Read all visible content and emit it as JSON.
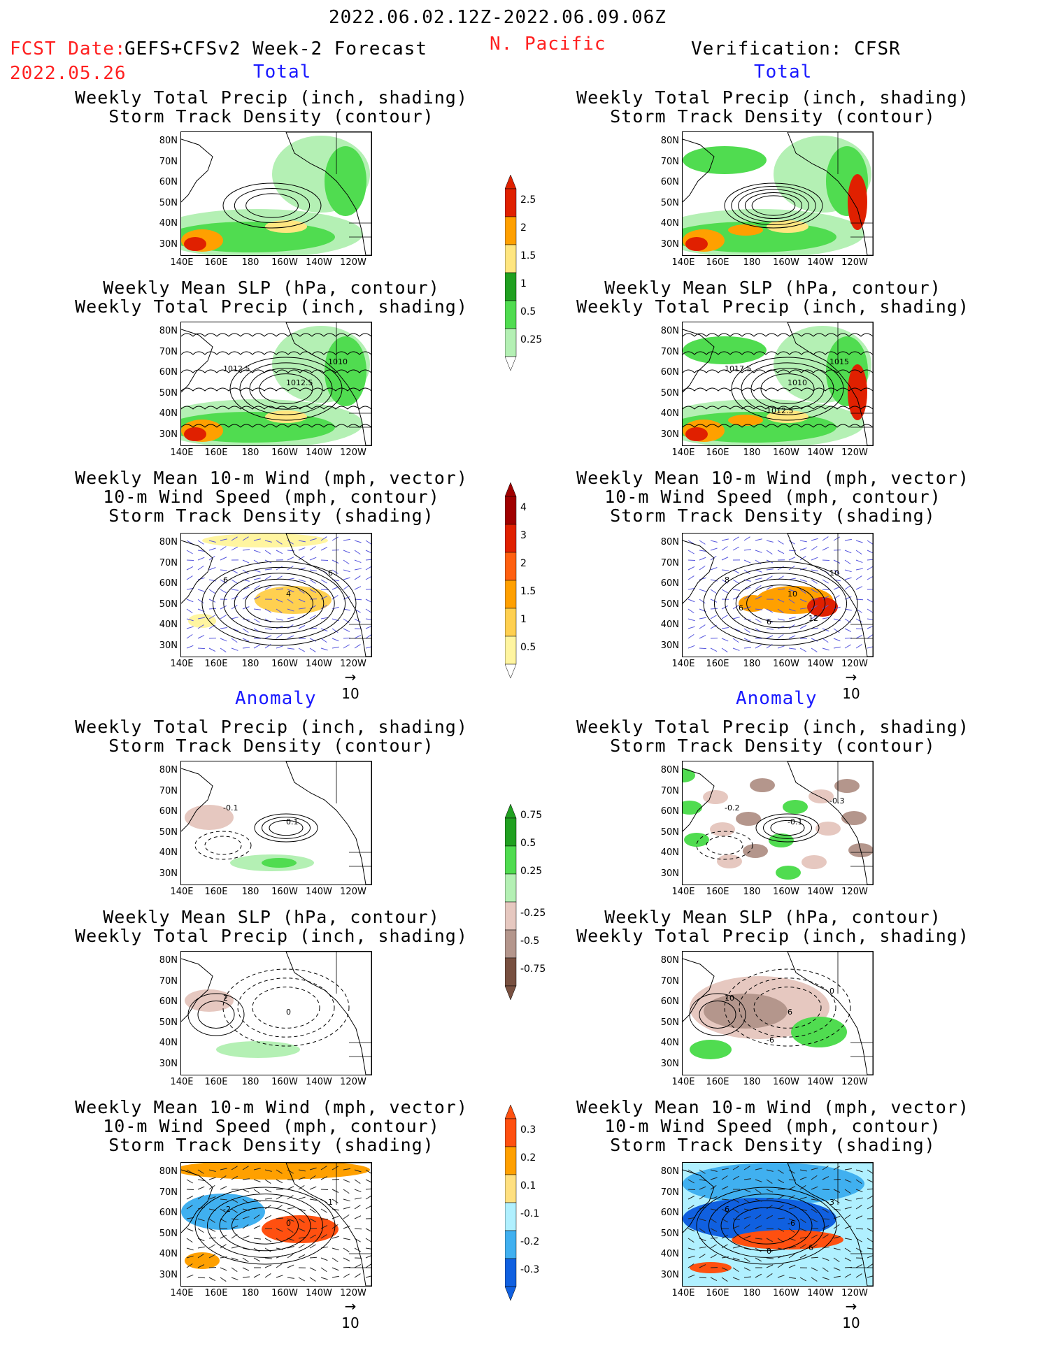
{
  "header": {
    "date_range": "2022.06.02.12Z-2022.06.09.06Z",
    "fcst_label": "FCST Date:",
    "fcst_model": "GEFS+CFSv2 Week-2 Forecast",
    "fcst_date": "2022.05.26",
    "region": "N. Pacific",
    "verification": "Verification: CFSR"
  },
  "sections": {
    "total": "Total",
    "anomaly": "Anomaly"
  },
  "titles": {
    "precip_storm": "Weekly Total Precip (inch, shading)\nStorm Track Density (contour)",
    "slp_precip": "Weekly Mean SLP (hPa, contour)\nWeekly Total Precip (inch, shading)",
    "wind_storm": "Weekly Mean 10-m Wind (mph, vector)\n10-m Wind Speed (mph, contour)\nStorm Track Density (shading)"
  },
  "axes": {
    "lat": [
      "80N",
      "70N",
      "60N",
      "50N",
      "40N",
      "30N"
    ],
    "lon": [
      "140E",
      "160E",
      "180",
      "160W",
      "140W",
      "120W"
    ],
    "ref_vector": "10"
  },
  "panel_labels": {
    "fc_slp_total": [
      "1012.5",
      "1012.5",
      "1010"
    ],
    "ob_slp_total": [
      "1017.5",
      "1010",
      "1015",
      "1012.5"
    ],
    "fc_wind_total": [
      "6",
      "4",
      "6"
    ],
    "ob_wind_total": [
      "8",
      "10",
      "10",
      "6",
      "12",
      "6"
    ],
    "fc_precip_anom": [
      "-0.1",
      "0.1"
    ],
    "ob_precip_anom": [
      "-0.2",
      "-0.1",
      "-0.3"
    ],
    "fc_slp_anom": [
      "2",
      "0"
    ],
    "ob_slp_anom": [
      "10",
      "6",
      "0",
      "-6"
    ],
    "fc_wind_anom": [
      "-2",
      "0",
      "1"
    ],
    "ob_wind_anom": [
      "6",
      "-6",
      "3",
      "0",
      "6"
    ]
  },
  "chart_data": [
    {
      "type": "heatmap",
      "title": "Weekly Total Precip (inch, shading) / Storm Track Density (contour)",
      "colorbar": [
        "0.25",
        "0.5",
        "1",
        "1.5",
        "2",
        "2.5"
      ],
      "colors": [
        "#b4f0b4",
        "#50dc50",
        "#20a020",
        "#ffe680",
        "#ffa000",
        "#e02000"
      ]
    },
    {
      "type": "heatmap",
      "title": "Storm Track Density (shading)",
      "colorbar": [
        "0.5",
        "1",
        "1.5",
        "2",
        "3",
        "4"
      ],
      "colors": [
        "#fff5a0",
        "#ffd050",
        "#ffa000",
        "#ff6010",
        "#e02000",
        "#a00000"
      ]
    },
    {
      "type": "heatmap",
      "title": "Weekly Total Precip Anomaly (inch, shading)",
      "colorbar": [
        "0.75",
        "0.5",
        "0.25",
        "-0.25",
        "-0.5",
        "-0.75"
      ],
      "colors": [
        "#20a020",
        "#50dc50",
        "#b4f0b4",
        "#e6c8c0",
        "#b4968c",
        "#785040"
      ]
    },
    {
      "type": "heatmap",
      "title": "Storm Track Density Anomaly (shading)",
      "colorbar": [
        "0.3",
        "0.2",
        "0.1",
        "-0.1",
        "-0.2",
        "-0.3"
      ],
      "colors": [
        "#ff5010",
        "#ffa000",
        "#ffe080",
        "#b0f0ff",
        "#40b0f0",
        "#1060e0"
      ]
    }
  ]
}
